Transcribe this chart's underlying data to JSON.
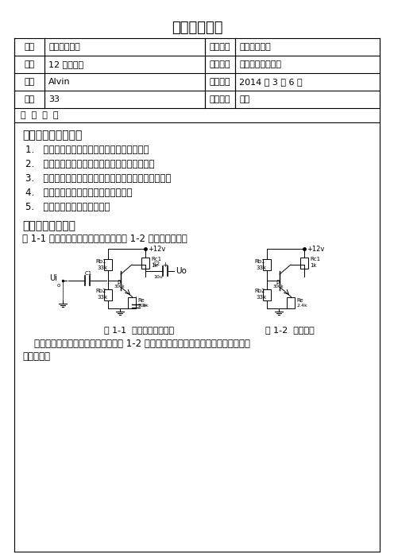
{
  "title": "学生实验报告",
  "table_rows": [
    [
      "院别",
      "电子信息学院",
      "课程名称",
      "电子技术实验"
    ],
    [
      "班级",
      "12 无线技术",
      "实验名称",
      "基本共射放大电路"
    ],
    [
      "姓名",
      "Alvin",
      "实验时间",
      "2014 年 3 月 6 日"
    ],
    [
      "学号",
      "33",
      "指导教师",
      "文毅"
    ]
  ],
  "report_label": "报  告  内  容",
  "section1_title": "一、实验目的和任务",
  "items": [
    "1.   加深对基本共射放大电路放大特性的理解；",
    "2.   学习放大电路的静态工作点参数的测量方法；",
    "3.   了解电路参数对静态工作点的影响和静态调试方法；",
    "4.   学习放大电路交流参数的测量方法；",
    "5.   学习常用电子仪器的使用。"
  ],
  "section2_title": "二、实验原理介绍",
  "intro_text": "图 1-1 为基本共射放大电路原理图，图 1-2 是其直流通路。",
  "fig1_label": "图 1-1  基本共射放大电路",
  "fig2_label": "图 1-2  直流通路",
  "analysis_line1": "    首先，对该电路作直流分析，分析图 1-2 的直流通路，可得到如下直流工作参数的关",
  "analysis_line2": "系表达式："
}
